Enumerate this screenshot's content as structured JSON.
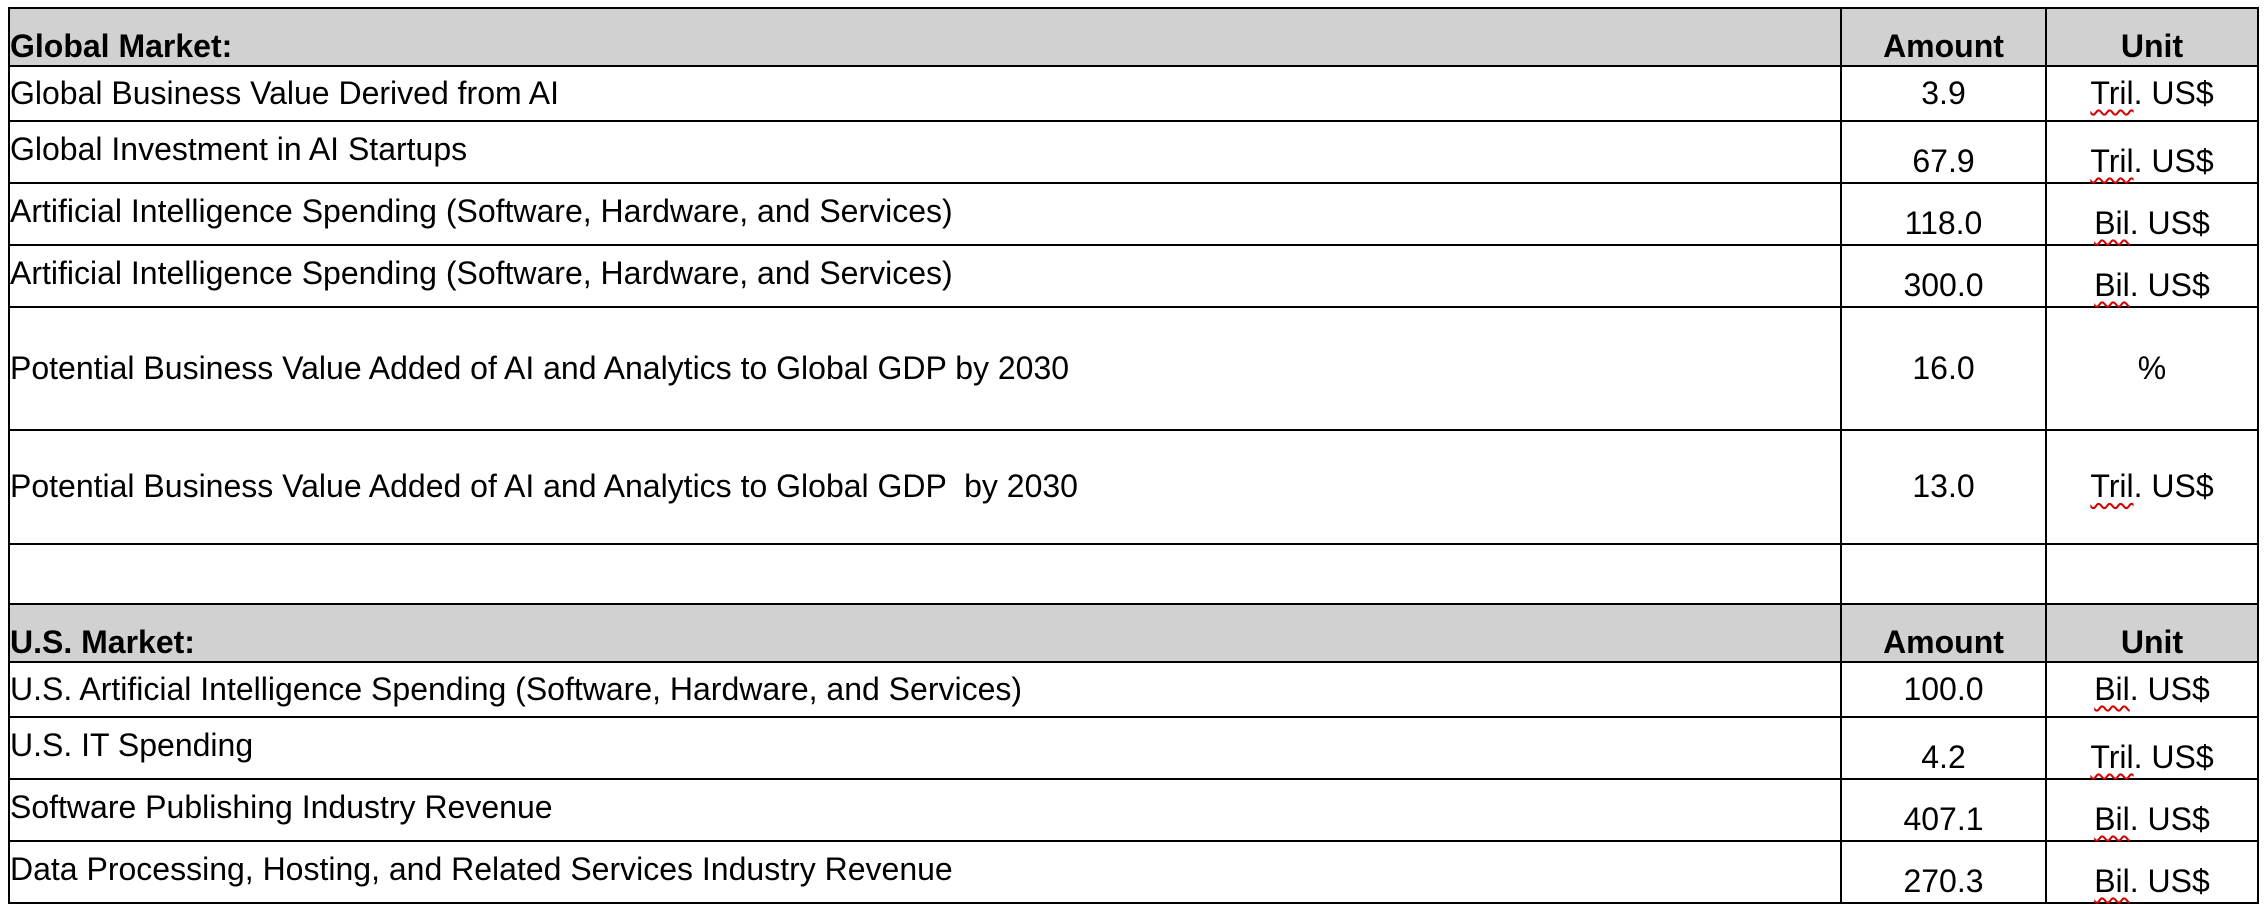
{
  "global_market": {
    "header": {
      "label": "Global Market:",
      "amount": "Amount",
      "unit": "Unit"
    },
    "rows": [
      {
        "label": "Global Business Value Derived from AI",
        "amount": "3.9",
        "unit_abbr": "Tril",
        "unit_rest": ". US$"
      },
      {
        "label": "Global Investment in AI Startups",
        "amount": "67.9",
        "unit_abbr": "Tril",
        "unit_rest": ". US$"
      },
      {
        "label": "Artificial Intelligence Spending (Software, Hardware, and Services)",
        "amount": "118.0",
        "unit_abbr": "Bil",
        "unit_rest": ". US$"
      },
      {
        "label": "Artificial Intelligence Spending (Software, Hardware, and Services)",
        "amount": "300.0",
        "unit_abbr": "Bil",
        "unit_rest": ". US$"
      },
      {
        "label": "Potential Business Value Added of AI and Analytics to Global GDP by 2030",
        "amount": "16.0",
        "unit_abbr": "",
        "unit_rest": "%"
      },
      {
        "label": "Potential Business Value Added of AI and Analytics to Global GDP  by 2030",
        "amount": "13.0",
        "unit_abbr": "Tril",
        "unit_rest": ". US$"
      }
    ]
  },
  "us_market": {
    "header": {
      "label": "U.S. Market:",
      "amount": "Amount",
      "unit": "Unit"
    },
    "rows": [
      {
        "label": "U.S. Artificial Intelligence Spending (Software, Hardware, and Services)",
        "amount": "100.0",
        "unit_abbr": "Bil",
        "unit_rest": ". US$"
      },
      {
        "label": "U.S. IT Spending",
        "amount": "4.2",
        "unit_abbr": "Tril",
        "unit_rest": ". US$"
      },
      {
        "label": "Software Publishing Industry Revenue",
        "amount": "407.1",
        "unit_abbr": "Bil",
        "unit_rest": ". US$"
      },
      {
        "label": "Data Processing, Hosting, and Related Services Industry Revenue",
        "amount": "270.3",
        "unit_abbr": "Bil",
        "unit_rest": ". US$"
      }
    ]
  }
}
